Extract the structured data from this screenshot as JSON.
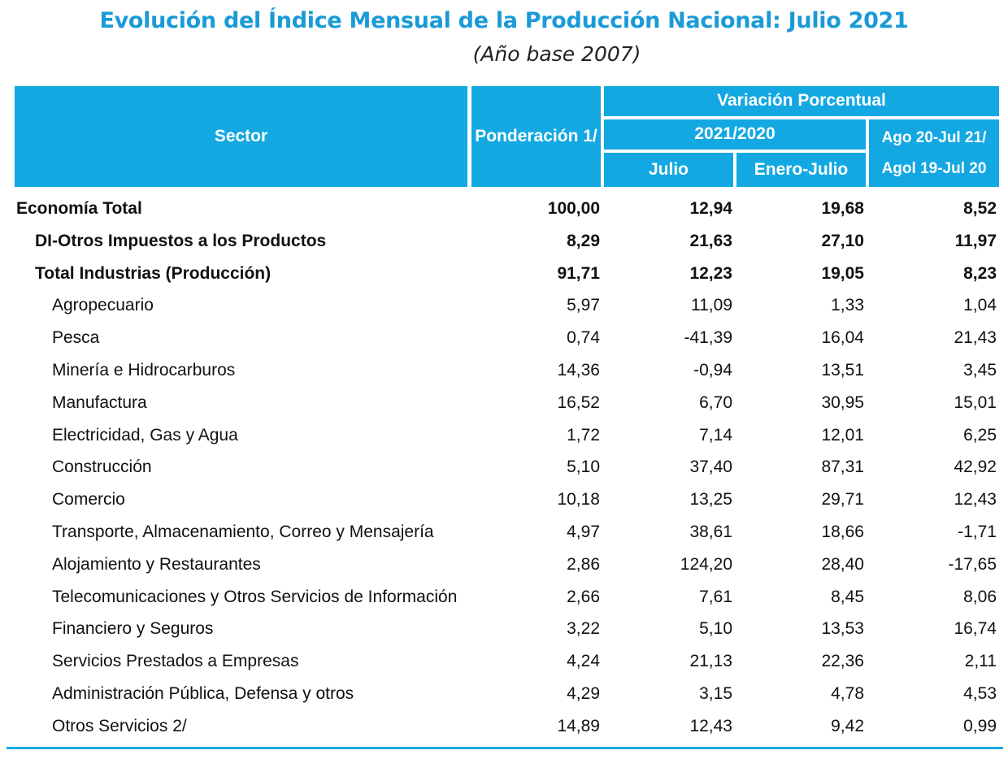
{
  "title": "Evolución del Índice Mensual de la Producción Nacional: Julio 2021",
  "subtitle": "(Año base 2007)",
  "header": {
    "sector": "Sector",
    "ponderacion": "Ponderación 1/",
    "variacion": "Variación Porcentual",
    "periodo": "2021/2020",
    "julio": "Julio",
    "enero_julio": "Enero-Julio",
    "ago_line1": "Ago 20-Jul 21/",
    "ago_line2": "Agol 19-Jul 20"
  },
  "rows": [
    {
      "sector": "Economía Total",
      "level": 0,
      "bold": true,
      "ponderacion": "100,00",
      "julio": "12,94",
      "enero_julio": "19,68",
      "ago": "8,52"
    },
    {
      "sector": "DI-Otros Impuestos a los Productos",
      "level": 1,
      "bold": true,
      "ponderacion": "8,29",
      "julio": "21,63",
      "enero_julio": "27,10",
      "ago": "11,97"
    },
    {
      "sector": "Total  Industrias (Producción)",
      "level": 1,
      "bold": true,
      "ponderacion": "91,71",
      "julio": "12,23",
      "enero_julio": "19,05",
      "ago": "8,23"
    },
    {
      "sector": "Agropecuario",
      "level": 2,
      "bold": false,
      "ponderacion": "5,97",
      "julio": "11,09",
      "enero_julio": "1,33",
      "ago": "1,04"
    },
    {
      "sector": "Pesca",
      "level": 2,
      "bold": false,
      "ponderacion": "0,74",
      "julio": "-41,39",
      "enero_julio": "16,04",
      "ago": "21,43"
    },
    {
      "sector": "Minería e Hidrocarburos",
      "level": 2,
      "bold": false,
      "ponderacion": "14,36",
      "julio": "-0,94",
      "enero_julio": "13,51",
      "ago": "3,45"
    },
    {
      "sector": "Manufactura",
      "level": 2,
      "bold": false,
      "ponderacion": "16,52",
      "julio": "6,70",
      "enero_julio": "30,95",
      "ago": "15,01"
    },
    {
      "sector": "Electricidad, Gas y Agua",
      "level": 2,
      "bold": false,
      "ponderacion": "1,72",
      "julio": "7,14",
      "enero_julio": "12,01",
      "ago": "6,25"
    },
    {
      "sector": "Construcción",
      "level": 2,
      "bold": false,
      "ponderacion": "5,10",
      "julio": "37,40",
      "enero_julio": "87,31",
      "ago": "42,92"
    },
    {
      "sector": "Comercio",
      "level": 2,
      "bold": false,
      "ponderacion": "10,18",
      "julio": "13,25",
      "enero_julio": "29,71",
      "ago": "12,43"
    },
    {
      "sector": "Transporte, Almacenamiento, Correo y Mensajería",
      "level": 2,
      "bold": false,
      "ponderacion": "4,97",
      "julio": "38,61",
      "enero_julio": "18,66",
      "ago": "-1,71"
    },
    {
      "sector": "Alojamiento y Restaurantes",
      "level": 2,
      "bold": false,
      "ponderacion": "2,86",
      "julio": "124,20",
      "enero_julio": "28,40",
      "ago": "-17,65"
    },
    {
      "sector": "Telecomunicaciones y Otros Servicios de Información",
      "level": 2,
      "bold": false,
      "ponderacion": "2,66",
      "julio": "7,61",
      "enero_julio": "8,45",
      "ago": "8,06"
    },
    {
      "sector": "Financiero y Seguros",
      "level": 2,
      "bold": false,
      "ponderacion": "3,22",
      "julio": "5,10",
      "enero_julio": "13,53",
      "ago": "16,74"
    },
    {
      "sector": "Servicios Prestados a Empresas",
      "level": 2,
      "bold": false,
      "ponderacion": "4,24",
      "julio": "21,13",
      "enero_julio": "22,36",
      "ago": "2,11"
    },
    {
      "sector": "Administración Pública, Defensa y otros",
      "level": 2,
      "bold": false,
      "ponderacion": "4,29",
      "julio": "3,15",
      "enero_julio": "4,78",
      "ago": "4,53"
    },
    {
      "sector": "Otros Servicios 2/",
      "level": 2,
      "bold": false,
      "ponderacion": "14,89",
      "julio": "12,43",
      "enero_julio": "9,42",
      "ago": "0,99"
    }
  ],
  "colors": {
    "title": "#1a9ad6",
    "header_bg": "#13a8e2",
    "header_text": "#ffffff",
    "rule": "#13a8e2"
  }
}
